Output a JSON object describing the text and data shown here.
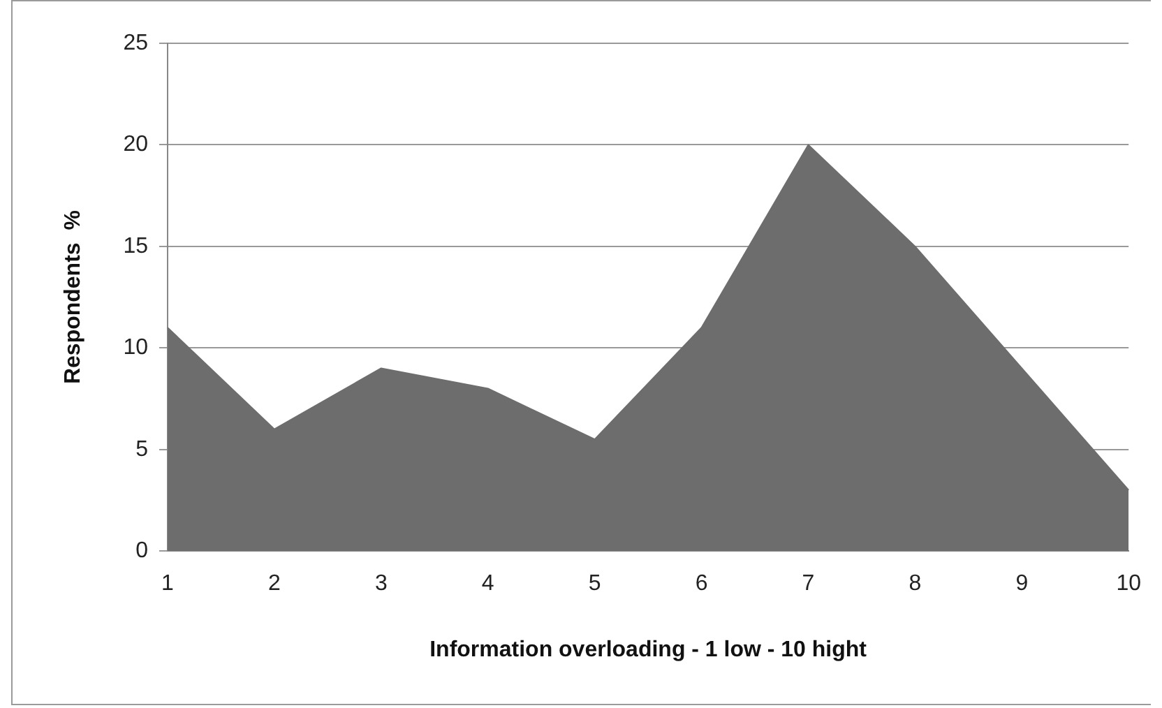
{
  "chart_data": {
    "type": "area",
    "xlabel": "Information overloading - 1 low - 10 hight",
    "ylabel": "Respondents  %",
    "categories": [
      "1",
      "2",
      "3",
      "4",
      "5",
      "6",
      "7",
      "8",
      "9",
      "10"
    ],
    "values": [
      11,
      6,
      9,
      8,
      5.5,
      11,
      20,
      15,
      9,
      3
    ],
    "color": "#6d6d6d",
    "ylim": [
      0,
      25
    ],
    "yticks": [
      0,
      5,
      10,
      15,
      20,
      25
    ],
    "grid": "y",
    "legend": false
  }
}
